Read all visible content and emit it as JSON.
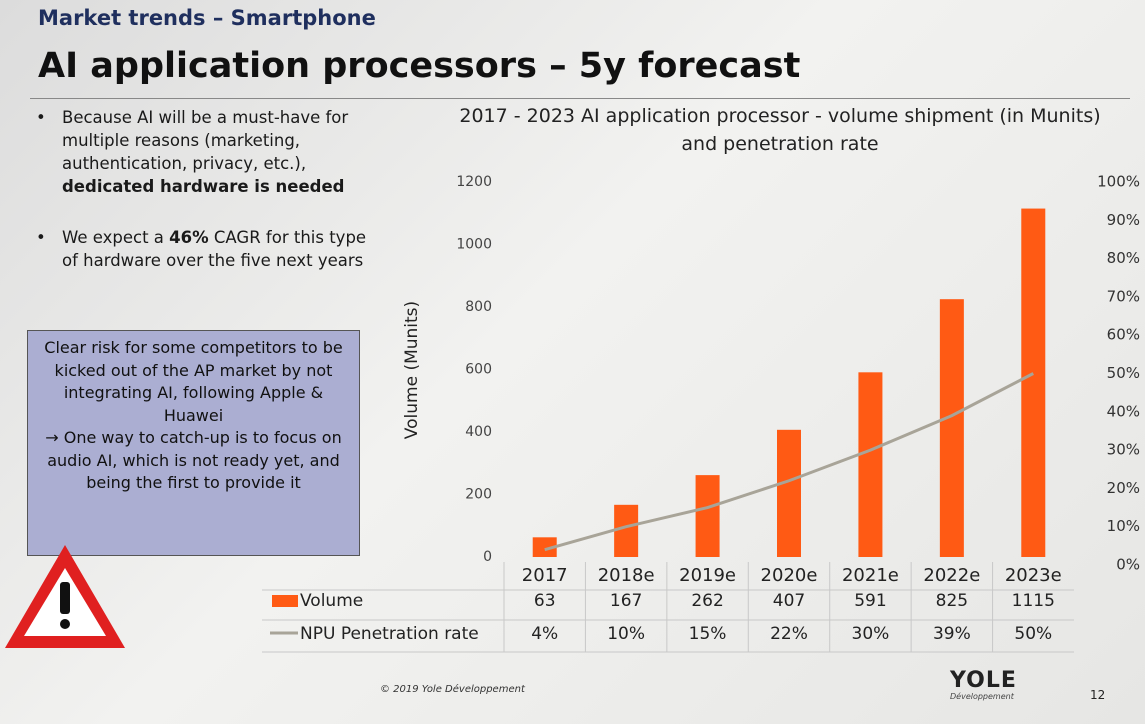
{
  "header": {
    "section": "Market trends – Smartphone",
    "title": "AI application processors – 5y forecast"
  },
  "bullets": [
    [
      "Because AI will be a must-have for multiple reasons (marketing, authentication, privacy, etc.),",
      "dedicated hardware is needed"
    ],
    [
      "We expect a",
      "46%",
      "CAGR for this type of hardware over the five next years"
    ]
  ],
  "callout": [
    "Clear risk for some competitors to be kicked out of the AP market by not integrating AI, following Apple & Huawei",
    "→ One way to catch-up is to focus on audio AI, which is not ready yet, and being the first to provide it"
  ],
  "footer": {
    "copyright": "© 2019 Yole Développement",
    "logo": "YOLE",
    "logo_sub": "Développement",
    "page": "12"
  },
  "chart_data": {
    "type": "bar",
    "title": "2017 - 2023 AI application processor - volume shipment (in Munits) and penetration rate",
    "ylabel": "Volume (Munits)",
    "categories": [
      "2017",
      "2018e",
      "2019e",
      "2020e",
      "2021e",
      "2022e",
      "2023e"
    ],
    "series": [
      {
        "name": "Volume",
        "color": "#ff5a14",
        "values": [
          63,
          167,
          262,
          407,
          591,
          825,
          1115
        ]
      },
      {
        "name": "NPU Penetration rate",
        "type": "line",
        "axis": "y2",
        "color": "#a8a498",
        "values": [
          4,
          10,
          15,
          22,
          30,
          39,
          50
        ],
        "value_labels": [
          "4%",
          "10%",
          "15%",
          "22%",
          "30%",
          "39%",
          "50%"
        ]
      }
    ],
    "ylim": [
      0,
      1200
    ],
    "yticks": [
      0,
      200,
      400,
      600,
      800,
      1000,
      1200
    ],
    "y2lim": [
      0,
      100
    ],
    "y2ticks": [
      {
        "value": 0,
        "label": "0%"
      },
      {
        "value": 10,
        "label": "10%"
      },
      {
        "value": 20,
        "label": "20%"
      },
      {
        "value": 30,
        "label": "30%"
      },
      {
        "value": 40,
        "label": "40%"
      },
      {
        "value": 50,
        "label": "50%"
      },
      {
        "value": 60,
        "label": "60%"
      },
      {
        "value": 70,
        "label": "70%"
      },
      {
        "value": 80,
        "label": "80%"
      },
      {
        "value": 90,
        "label": "90%"
      },
      {
        "value": 100,
        "label": "100%"
      }
    ],
    "grid": false
  }
}
